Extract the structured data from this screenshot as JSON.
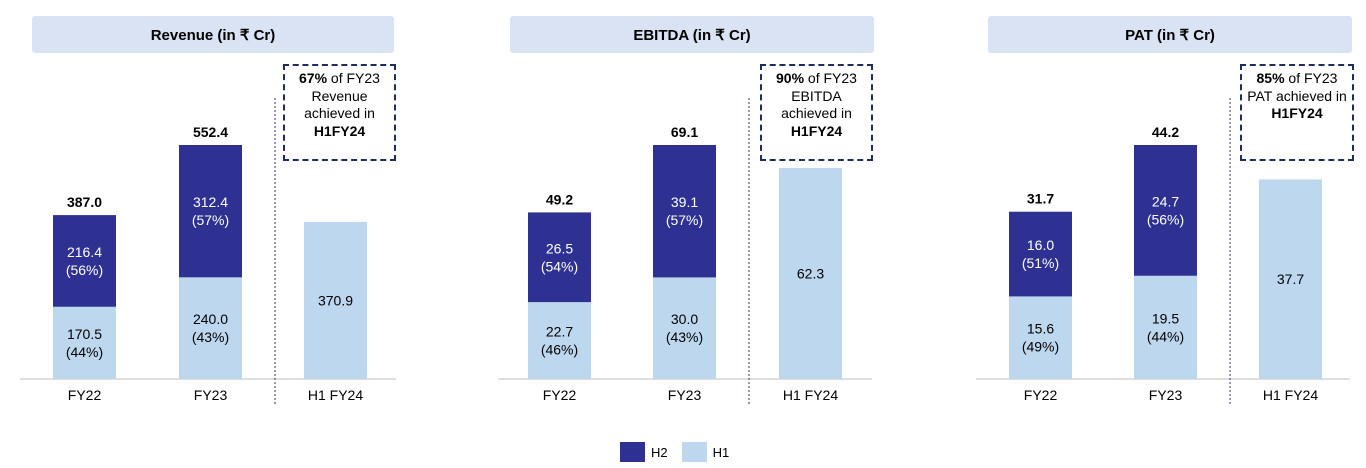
{
  "colors": {
    "h2": "#2e3192",
    "h1": "#bdd7ee",
    "title_bg": "#d9e3f3",
    "dash": "#1f2d5c"
  },
  "legend": {
    "h2_label": "H2",
    "h1_label": "H1"
  },
  "chart_data": [
    {
      "type": "bar",
      "title": "Revenue (in ₹ Cr)",
      "categories": [
        "FY22",
        "FY23",
        "H1 FY24"
      ],
      "series": [
        {
          "name": "H1",
          "values": [
            170.5,
            240.0,
            370.9
          ],
          "labels": [
            "170.5\n(44%)",
            "240.0\n(43%)",
            "370.9"
          ]
        },
        {
          "name": "H2",
          "values": [
            216.4,
            312.4,
            null
          ],
          "labels": [
            "216.4\n(56%)",
            "312.4\n(57%)",
            ""
          ]
        }
      ],
      "totals": [
        "387.0",
        "552.4",
        ""
      ],
      "ylim": [
        0,
        552.4
      ],
      "callout": {
        "bold_prefix": "67%",
        "text": " of FY23 Revenue achieved in ",
        "bold_suffix": "H1FY24"
      }
    },
    {
      "type": "bar",
      "title": "EBITDA (in ₹ Cr)",
      "categories": [
        "FY22",
        "FY23",
        "H1 FY24"
      ],
      "series": [
        {
          "name": "H1",
          "values": [
            22.7,
            30.0,
            62.3
          ],
          "labels": [
            "22.7\n(46%)",
            "30.0\n(43%)",
            "62.3"
          ]
        },
        {
          "name": "H2",
          "values": [
            26.5,
            39.1,
            null
          ],
          "labels": [
            "26.5\n(54%)",
            "39.1\n(57%)",
            ""
          ]
        }
      ],
      "totals": [
        "49.2",
        "69.1",
        ""
      ],
      "ylim": [
        0,
        69.1
      ],
      "callout": {
        "bold_prefix": "90%",
        "text": " of FY23 EBITDA achieved in ",
        "bold_suffix": "H1FY24"
      }
    },
    {
      "type": "bar",
      "title": "PAT (in ₹ Cr)",
      "categories": [
        "FY22",
        "FY23",
        "H1 FY24"
      ],
      "series": [
        {
          "name": "H1",
          "values": [
            15.6,
            19.5,
            37.7
          ],
          "labels": [
            "15.6\n(49%)",
            "19.5\n(44%)",
            "37.7"
          ]
        },
        {
          "name": "H2",
          "values": [
            16.0,
            24.7,
            null
          ],
          "labels": [
            "16.0\n(51%)",
            "24.7\n(56%)",
            ""
          ]
        }
      ],
      "totals": [
        "31.7",
        "44.2",
        ""
      ],
      "ylim": [
        0,
        44.2
      ],
      "callout": {
        "bold_prefix": "85%",
        "text": " of FY23 PAT achieved in ",
        "bold_suffix": "H1FY24"
      }
    }
  ]
}
